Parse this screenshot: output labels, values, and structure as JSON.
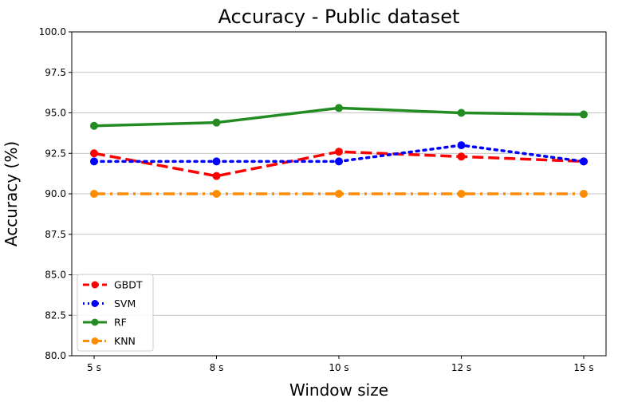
{
  "chart_data": {
    "type": "line",
    "title": "Accuracy - Public dataset",
    "xlabel": "Window size",
    "ylabel": "Accuracy (%)",
    "categories": [
      "5 s",
      "8 s",
      "10 s",
      "12 s",
      "15 s"
    ],
    "ylim": [
      80.0,
      100.0
    ],
    "yticks": [
      "80.0",
      "82.5",
      "85.0",
      "87.5",
      "90.0",
      "92.5",
      "95.0",
      "97.5",
      "100.0"
    ],
    "grid": "horizontal",
    "legend_position": "lower-left",
    "series": [
      {
        "name": "GBDT",
        "values": [
          92.5,
          91.1,
          92.6,
          92.3,
          92.0
        ],
        "color": "#ff0000",
        "linestyle": "dashed"
      },
      {
        "name": "SVM",
        "values": [
          92.0,
          92.0,
          92.0,
          93.0,
          92.0
        ],
        "color": "#0000ff",
        "linestyle": "dotted"
      },
      {
        "name": "RF",
        "values": [
          94.2,
          94.4,
          95.3,
          95.0,
          94.9
        ],
        "color": "#228b22",
        "linestyle": "solid"
      },
      {
        "name": "KNN",
        "values": [
          90.0,
          90.0,
          90.0,
          90.0,
          90.0
        ],
        "color": "#ff8c00",
        "linestyle": "dashdot"
      }
    ]
  }
}
